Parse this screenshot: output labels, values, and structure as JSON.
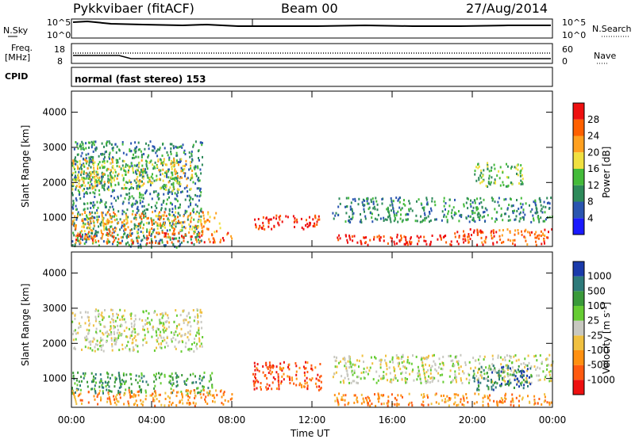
{
  "header": {
    "station": "Pykkvibaer (fitACF)",
    "beam": "Beam 00",
    "date": "27/Aug/2014"
  },
  "strip": {
    "nsky_label": "N.Sky",
    "nsky_ticks": [
      "10^5",
      "10^0"
    ],
    "nsearch_label": "N.Search",
    "nsearch_ticks": [
      "10^5",
      "10^0"
    ],
    "freq_label": "Freq.",
    "freq_unit": "[MHz]",
    "freq_ticks": [
      "18",
      "8"
    ],
    "nave_label": "Nave",
    "nave_ticks": [
      "60",
      "0"
    ],
    "cpid_label": "CPID",
    "cpid_text": "normal (fast stereo) 153"
  },
  "chart_data": [
    {
      "type": "heatmap",
      "name": "power-panel",
      "ylabel": "Slant Range [km]",
      "xlabel": "",
      "x_ticks": [
        "00:00",
        "04:00",
        "08:00",
        "12:00",
        "16:00",
        "20:00",
        "00:00"
      ],
      "x_range_hours": [
        0,
        24
      ],
      "y_ticks": [
        "1000",
        "2000",
        "3000",
        "4000"
      ],
      "ylim": [
        180,
        4600
      ],
      "colorbar": {
        "label": "Power [dB]",
        "ticks": [
          "4",
          "8",
          "12",
          "16",
          "20",
          "24",
          "28"
        ],
        "colors": [
          "#1a1aff",
          "#2a55b0",
          "#2e8a5a",
          "#44bb3a",
          "#f0e040",
          "#ffa020",
          "#ff6000",
          "#ee1010"
        ]
      },
      "regions": [
        {
          "t": [
            0.0,
            6.5
          ],
          "r": [
            180,
            3200
          ],
          "level": 2
        },
        {
          "t": [
            0.0,
            6.0
          ],
          "r": [
            1800,
            2700
          ],
          "level": 4
        },
        {
          "t": [
            0.0,
            7.5
          ],
          "r": [
            600,
            1200
          ],
          "level": 5
        },
        {
          "t": [
            0.0,
            8.0
          ],
          "r": [
            300,
            600
          ],
          "level": 6
        },
        {
          "t": [
            9.0,
            12.5
          ],
          "r": [
            700,
            1100
          ],
          "level": 7
        },
        {
          "t": [
            13.0,
            19.0
          ],
          "r": [
            250,
            550
          ],
          "level": 7
        },
        {
          "t": [
            19.0,
            24.0
          ],
          "r": [
            250,
            700
          ],
          "level": 6
        },
        {
          "t": [
            13.0,
            24.0
          ],
          "r": [
            900,
            1600
          ],
          "level": 2
        },
        {
          "t": [
            20.0,
            22.5
          ],
          "r": [
            1900,
            2600
          ],
          "level": 3
        }
      ]
    },
    {
      "type": "heatmap",
      "name": "velocity-panel",
      "ylabel": "Slant Range [km]",
      "xlabel": "Time UT",
      "x_ticks": [
        "00:00",
        "04:00",
        "08:00",
        "12:00",
        "16:00",
        "20:00",
        "00:00"
      ],
      "x_range_hours": [
        0,
        24
      ],
      "y_ticks": [
        "1000",
        "2000",
        "3000",
        "4000"
      ],
      "ylim": [
        180,
        4600
      ],
      "colorbar": {
        "label": "Velocity [m s-1]",
        "ticks": [
          "1000",
          "500",
          "100",
          "25",
          "-25",
          "-100",
          "-500",
          "-1000"
        ],
        "colors": [
          "#1a3aaa",
          "#2e7a7a",
          "#3a9a3a",
          "#66cc33",
          "#c8c8c0",
          "#f0c040",
          "#ff9010",
          "#ff5a10",
          "#ee1010"
        ]
      },
      "regions": [
        {
          "t": [
            0.0,
            6.5
          ],
          "r": [
            1800,
            3000
          ],
          "level": 4
        },
        {
          "t": [
            0.0,
            7.0
          ],
          "r": [
            600,
            1200
          ],
          "level": 2
        },
        {
          "t": [
            0.0,
            8.0
          ],
          "r": [
            250,
            700
          ],
          "level": 6
        },
        {
          "t": [
            9.0,
            12.5
          ],
          "r": [
            700,
            1500
          ],
          "level": 7
        },
        {
          "t": [
            13.0,
            19.0
          ],
          "r": [
            250,
            600
          ],
          "level": 6
        },
        {
          "t": [
            13.0,
            24.0
          ],
          "r": [
            900,
            1700
          ],
          "level": 4
        },
        {
          "t": [
            20.0,
            23.0
          ],
          "r": [
            700,
            1400
          ],
          "level": 1
        },
        {
          "t": [
            19.0,
            24.0
          ],
          "r": [
            250,
            600
          ],
          "level": 6
        }
      ]
    }
  ],
  "power_label": "Power [dB]",
  "velocity_label_main": "Velocity [m s",
  "velocity_label_exp": "-1",
  "velocity_label_end": "]"
}
